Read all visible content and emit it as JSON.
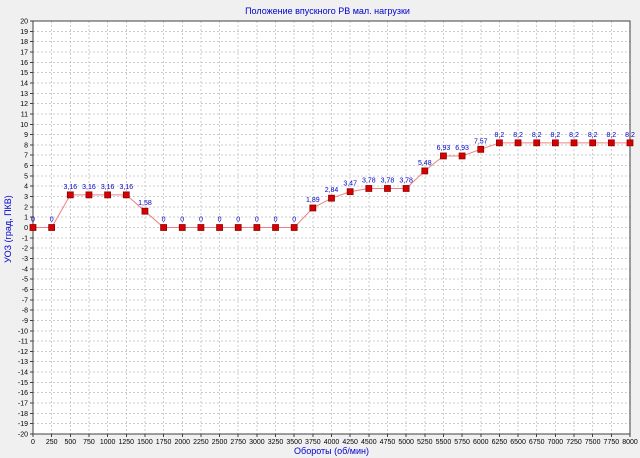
{
  "chart_data": {
    "type": "line",
    "title": "Положение впускного РВ мал. нагрузки",
    "xlabel": "Обороты (об/мин)",
    "ylabel": "УОЗ (град, ПКВ)",
    "xlim": [
      0,
      8000
    ],
    "ylim": [
      -20,
      20
    ],
    "x_tick_step": 250,
    "y_tick_step": 1,
    "grid": true,
    "legend": "none",
    "x": [
      0,
      250,
      500,
      750,
      1000,
      1250,
      1500,
      1750,
      2000,
      2250,
      2500,
      2750,
      3000,
      3250,
      3500,
      3750,
      4000,
      4250,
      4500,
      4750,
      5000,
      5250,
      5500,
      5750,
      6000,
      6250,
      6500,
      6750,
      7000,
      7250,
      7500,
      7750,
      8000
    ],
    "values": [
      0,
      0,
      3.16,
      3.16,
      3.16,
      3.16,
      1.58,
      0,
      0,
      0,
      0,
      0,
      0,
      0,
      0,
      1.89,
      2.84,
      3.47,
      3.78,
      3.78,
      3.78,
      5.48,
      6.93,
      6.93,
      7.57,
      8.2,
      8.2,
      8.2,
      8.2,
      8.2,
      8.2,
      8.2,
      8.2
    ],
    "point_labels": [
      "0",
      "0",
      "3,16",
      "3,16",
      "3,16",
      "3,16",
      "1,58",
      "0",
      "0",
      "0",
      "0",
      "0",
      "0",
      "0",
      "0",
      "1,89",
      "2,84",
      "3,47",
      "3,78",
      "3,78",
      "3,78",
      "5,48",
      "6,93",
      "6,93",
      "7,57",
      "8,2",
      "8,2",
      "8,2",
      "8,2",
      "8,2",
      "8,2",
      "8,2",
      "8,2"
    ],
    "colors": {
      "title": "#0000d0",
      "axis_titles": "#0000d0",
      "line": "#f08080",
      "marker": "#d60000",
      "marker_border": "#8b0000",
      "point_label": "#0000c8",
      "grid": "#cccccc",
      "axis": "#404040",
      "tick_label": "#000000",
      "plot_bg": "#ffffff",
      "panel_bg": "#f0f0f0"
    }
  }
}
